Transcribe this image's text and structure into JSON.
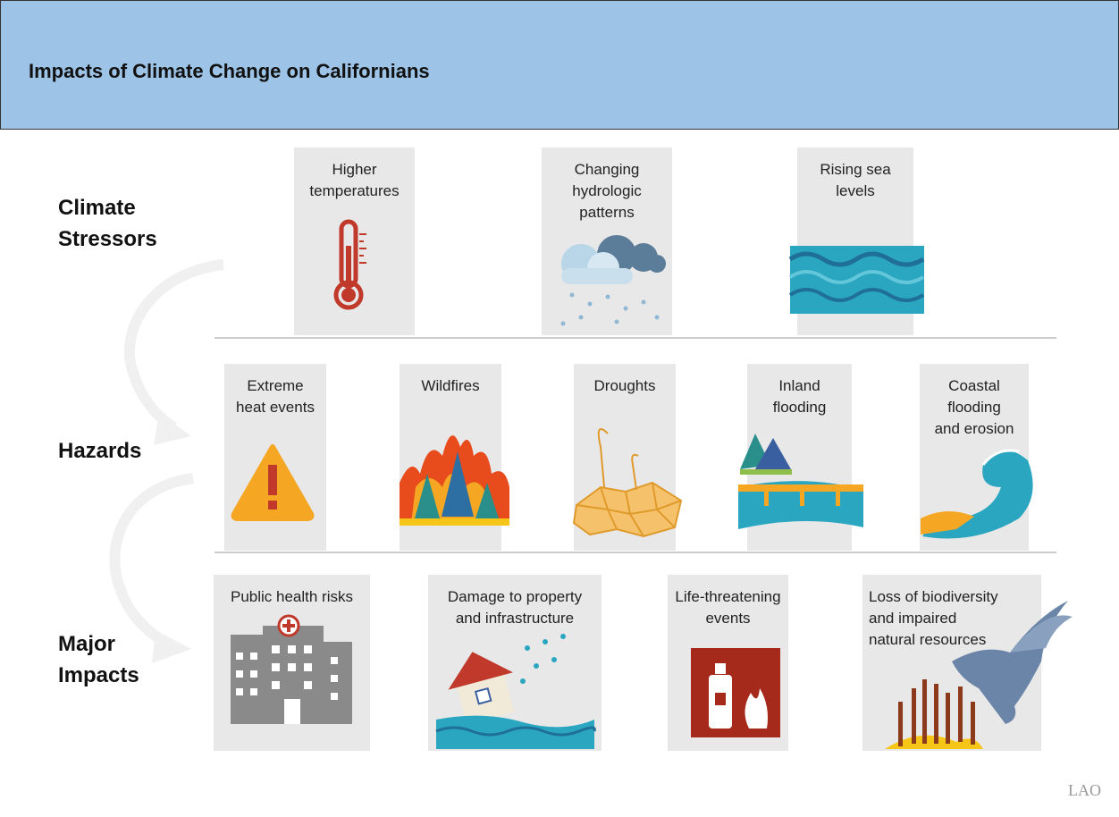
{
  "header": {
    "title": "Impacts of Climate Change on Californians"
  },
  "rows": [
    {
      "label": [
        "Climate",
        "Stressors"
      ],
      "items": [
        [
          "Higher",
          "temperatures"
        ],
        [
          "Changing",
          "hydrologic",
          "patterns"
        ],
        [
          "Rising sea",
          "levels"
        ]
      ]
    },
    {
      "label": [
        "Hazards"
      ],
      "items": [
        [
          "Extreme",
          "heat events"
        ],
        [
          "Wildfires"
        ],
        [
          "Droughts"
        ],
        [
          "Inland",
          "flooding"
        ],
        [
          "Coastal",
          "flooding",
          "and erosion"
        ]
      ]
    },
    {
      "label": [
        "Major",
        "Impacts"
      ],
      "items": [
        [
          "Public health risks"
        ],
        [
          "Damage to property",
          "and infrastructure"
        ],
        [
          "Life-threatening",
          "events"
        ],
        [
          "Loss of biodiversity",
          "and impaired",
          "natural resources"
        ]
      ]
    }
  ],
  "footer": {
    "logo": "LAO"
  }
}
